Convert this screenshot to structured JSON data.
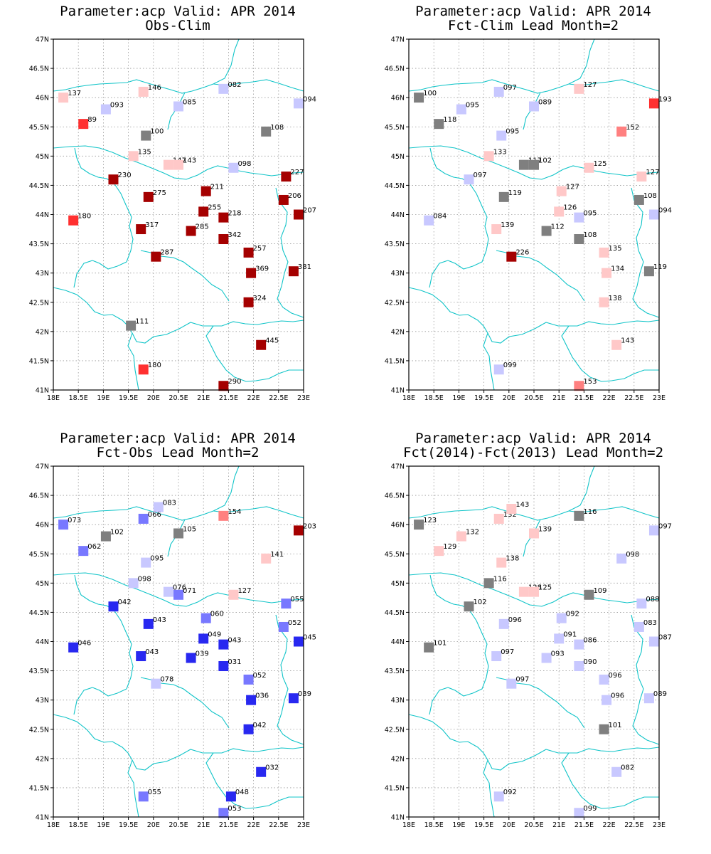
{
  "colors": {
    "gray": "#7f7f7f",
    "darkred": "#a50000",
    "red": "#ff3030",
    "lightred": "#ff8080",
    "pink": "#ffc8c8",
    "lightblue": "#c8c8ff",
    "midblue": "#7878ff",
    "blue": "#2828f0",
    "border": "#10c4c8"
  },
  "axes": {
    "lon_ticks": [
      "18E",
      "18.5E",
      "19E",
      "19.5E",
      "20E",
      "20.5E",
      "21E",
      "21.5E",
      "22E",
      "22.5E",
      "23E"
    ],
    "lat_ticks": [
      "41N",
      "41.5N",
      "42N",
      "42.5N",
      "43N",
      "43.5N",
      "44N",
      "44.5N",
      "45N",
      "45.5N",
      "46N",
      "46.5N",
      "47N"
    ],
    "lon_range": [
      18,
      23
    ],
    "lat_range": [
      41,
      47
    ]
  },
  "panels": [
    {
      "title_line1": "Parameter:acp Valid: APR 2014",
      "title_line2": "Obs-Clim",
      "stations": [
        {
          "lon": 18.2,
          "lat": 46.0,
          "value": "137",
          "color": "pink"
        },
        {
          "lon": 18.6,
          "lat": 45.55,
          "value": "89",
          "color": "red"
        },
        {
          "lon": 19.05,
          "lat": 45.8,
          "value": "093",
          "color": "lightblue"
        },
        {
          "lon": 19.8,
          "lat": 46.1,
          "value": "146",
          "color": "pink"
        },
        {
          "lon": 20.5,
          "lat": 45.85,
          "value": "085",
          "color": "lightblue"
        },
        {
          "lon": 21.4,
          "lat": 46.15,
          "value": "082",
          "color": "lightblue"
        },
        {
          "lon": 22.9,
          "lat": 45.9,
          "value": "094",
          "color": "lightblue"
        },
        {
          "lon": 19.85,
          "lat": 45.35,
          "value": "100",
          "color": "gray"
        },
        {
          "lon": 22.25,
          "lat": 45.42,
          "value": "108",
          "color": "gray"
        },
        {
          "lon": 19.6,
          "lat": 45.0,
          "value": "135",
          "color": "pink"
        },
        {
          "lon": 20.3,
          "lat": 44.85,
          "value": "147",
          "color": "pink"
        },
        {
          "lon": 20.5,
          "lat": 44.85,
          "value": "143",
          "color": "pink"
        },
        {
          "lon": 21.6,
          "lat": 44.8,
          "value": "098",
          "color": "lightblue"
        },
        {
          "lon": 19.2,
          "lat": 44.6,
          "value": "230",
          "color": "darkred"
        },
        {
          "lon": 22.65,
          "lat": 44.65,
          "value": "227",
          "color": "darkred"
        },
        {
          "lon": 19.9,
          "lat": 44.3,
          "value": "275",
          "color": "darkred"
        },
        {
          "lon": 21.05,
          "lat": 44.4,
          "value": "211",
          "color": "darkred"
        },
        {
          "lon": 22.6,
          "lat": 44.25,
          "value": "206",
          "color": "darkred"
        },
        {
          "lon": 18.4,
          "lat": 43.9,
          "value": "180",
          "color": "red"
        },
        {
          "lon": 21.0,
          "lat": 44.05,
          "value": "255",
          "color": "darkred"
        },
        {
          "lon": 21.4,
          "lat": 43.95,
          "value": "218",
          "color": "darkred"
        },
        {
          "lon": 22.9,
          "lat": 44.0,
          "value": "207",
          "color": "darkred"
        },
        {
          "lon": 19.75,
          "lat": 43.75,
          "value": "317",
          "color": "darkred"
        },
        {
          "lon": 20.75,
          "lat": 43.72,
          "value": "285",
          "color": "darkred"
        },
        {
          "lon": 21.4,
          "lat": 43.58,
          "value": "342",
          "color": "darkred"
        },
        {
          "lon": 20.05,
          "lat": 43.28,
          "value": "287",
          "color": "darkred"
        },
        {
          "lon": 21.9,
          "lat": 43.35,
          "value": "257",
          "color": "darkred"
        },
        {
          "lon": 21.95,
          "lat": 43.0,
          "value": "369",
          "color": "darkred"
        },
        {
          "lon": 22.8,
          "lat": 43.03,
          "value": "381",
          "color": "darkred"
        },
        {
          "lon": 21.9,
          "lat": 42.5,
          "value": "324",
          "color": "darkred"
        },
        {
          "lon": 19.55,
          "lat": 42.1,
          "value": "111",
          "color": "gray"
        },
        {
          "lon": 22.15,
          "lat": 41.77,
          "value": "445",
          "color": "darkred"
        },
        {
          "lon": 19.8,
          "lat": 41.35,
          "value": "180",
          "color": "red"
        },
        {
          "lon": 21.4,
          "lat": 41.07,
          "value": "290",
          "color": "darkred"
        }
      ]
    },
    {
      "title_line1": "Parameter:acp Valid: APR 2014",
      "title_line2": "Fct-Clim Lead Month=2",
      "stations": [
        {
          "lon": 18.2,
          "lat": 46.0,
          "value": "100",
          "color": "gray"
        },
        {
          "lon": 18.6,
          "lat": 45.55,
          "value": "118",
          "color": "gray"
        },
        {
          "lon": 19.05,
          "lat": 45.8,
          "value": "095",
          "color": "lightblue"
        },
        {
          "lon": 19.8,
          "lat": 46.1,
          "value": "097",
          "color": "lightblue"
        },
        {
          "lon": 20.5,
          "lat": 45.85,
          "value": "089",
          "color": "lightblue"
        },
        {
          "lon": 21.4,
          "lat": 46.15,
          "value": "127",
          "color": "pink"
        },
        {
          "lon": 22.9,
          "lat": 45.9,
          "value": "193",
          "color": "red"
        },
        {
          "lon": 19.85,
          "lat": 45.35,
          "value": "095",
          "color": "lightblue"
        },
        {
          "lon": 22.25,
          "lat": 45.42,
          "value": "152",
          "color": "lightred"
        },
        {
          "lon": 19.6,
          "lat": 45.0,
          "value": "133",
          "color": "pink"
        },
        {
          "lon": 20.3,
          "lat": 44.85,
          "value": "117",
          "color": "gray"
        },
        {
          "lon": 20.5,
          "lat": 44.85,
          "value": "102",
          "color": "gray"
        },
        {
          "lon": 21.6,
          "lat": 44.8,
          "value": "125",
          "color": "pink"
        },
        {
          "lon": 19.2,
          "lat": 44.6,
          "value": "097",
          "color": "lightblue"
        },
        {
          "lon": 22.65,
          "lat": 44.65,
          "value": "127",
          "color": "pink"
        },
        {
          "lon": 19.9,
          "lat": 44.3,
          "value": "119",
          "color": "gray"
        },
        {
          "lon": 21.05,
          "lat": 44.4,
          "value": "127",
          "color": "pink"
        },
        {
          "lon": 22.6,
          "lat": 44.25,
          "value": "108",
          "color": "gray"
        },
        {
          "lon": 18.4,
          "lat": 43.9,
          "value": "084",
          "color": "lightblue"
        },
        {
          "lon": 21.0,
          "lat": 44.05,
          "value": "126",
          "color": "pink"
        },
        {
          "lon": 21.4,
          "lat": 43.95,
          "value": "095",
          "color": "lightblue"
        },
        {
          "lon": 22.9,
          "lat": 44.0,
          "value": "094",
          "color": "lightblue"
        },
        {
          "lon": 19.75,
          "lat": 43.75,
          "value": "139",
          "color": "pink"
        },
        {
          "lon": 20.75,
          "lat": 43.72,
          "value": "112",
          "color": "gray"
        },
        {
          "lon": 21.4,
          "lat": 43.58,
          "value": "108",
          "color": "gray"
        },
        {
          "lon": 20.05,
          "lat": 43.28,
          "value": "226",
          "color": "darkred"
        },
        {
          "lon": 21.9,
          "lat": 43.35,
          "value": "135",
          "color": "pink"
        },
        {
          "lon": 21.95,
          "lat": 43.0,
          "value": "134",
          "color": "pink"
        },
        {
          "lon": 22.8,
          "lat": 43.03,
          "value": "119",
          "color": "gray"
        },
        {
          "lon": 21.9,
          "lat": 42.5,
          "value": "138",
          "color": "pink"
        },
        {
          "lon": 22.15,
          "lat": 41.77,
          "value": "143",
          "color": "pink"
        },
        {
          "lon": 19.8,
          "lat": 41.35,
          "value": "099",
          "color": "lightblue"
        },
        {
          "lon": 21.4,
          "lat": 41.07,
          "value": "153",
          "color": "lightred"
        }
      ]
    },
    {
      "title_line1": "Parameter:acp Valid: APR 2014",
      "title_line2": "Fct-Obs Lead Month=2",
      "stations": [
        {
          "lon": 18.2,
          "lat": 46.0,
          "value": "073",
          "color": "midblue"
        },
        {
          "lon": 18.6,
          "lat": 45.55,
          "value": "062",
          "color": "midblue"
        },
        {
          "lon": 19.05,
          "lat": 45.8,
          "value": "102",
          "color": "gray"
        },
        {
          "lon": 19.8,
          "lat": 46.1,
          "value": "066",
          "color": "midblue"
        },
        {
          "lon": 20.1,
          "lat": 46.3,
          "value": "083",
          "color": "lightblue"
        },
        {
          "lon": 20.5,
          "lat": 45.85,
          "value": "105",
          "color": "gray"
        },
        {
          "lon": 21.4,
          "lat": 46.15,
          "value": "154",
          "color": "lightred"
        },
        {
          "lon": 22.9,
          "lat": 45.9,
          "value": "203",
          "color": "darkred"
        },
        {
          "lon": 19.85,
          "lat": 45.35,
          "value": "095",
          "color": "lightblue"
        },
        {
          "lon": 22.25,
          "lat": 45.42,
          "value": "141",
          "color": "pink"
        },
        {
          "lon": 19.6,
          "lat": 45.0,
          "value": "098",
          "color": "lightblue"
        },
        {
          "lon": 20.3,
          "lat": 44.85,
          "value": "076",
          "color": "lightblue"
        },
        {
          "lon": 20.5,
          "lat": 44.8,
          "value": "071",
          "color": "midblue"
        },
        {
          "lon": 21.6,
          "lat": 44.8,
          "value": "127",
          "color": "pink"
        },
        {
          "lon": 19.2,
          "lat": 44.6,
          "value": "042",
          "color": "blue"
        },
        {
          "lon": 22.65,
          "lat": 44.65,
          "value": "055",
          "color": "midblue"
        },
        {
          "lon": 19.9,
          "lat": 44.3,
          "value": "043",
          "color": "blue"
        },
        {
          "lon": 21.05,
          "lat": 44.4,
          "value": "060",
          "color": "midblue"
        },
        {
          "lon": 22.6,
          "lat": 44.25,
          "value": "052",
          "color": "midblue"
        },
        {
          "lon": 18.4,
          "lat": 43.9,
          "value": "046",
          "color": "blue"
        },
        {
          "lon": 21.0,
          "lat": 44.05,
          "value": "049",
          "color": "blue"
        },
        {
          "lon": 21.4,
          "lat": 43.95,
          "value": "043",
          "color": "blue"
        },
        {
          "lon": 22.9,
          "lat": 44.0,
          "value": "045",
          "color": "blue"
        },
        {
          "lon": 19.75,
          "lat": 43.75,
          "value": "043",
          "color": "blue"
        },
        {
          "lon": 20.75,
          "lat": 43.72,
          "value": "039",
          "color": "blue"
        },
        {
          "lon": 21.4,
          "lat": 43.58,
          "value": "031",
          "color": "blue"
        },
        {
          "lon": 20.05,
          "lat": 43.28,
          "value": "078",
          "color": "lightblue"
        },
        {
          "lon": 21.9,
          "lat": 43.35,
          "value": "052",
          "color": "midblue"
        },
        {
          "lon": 21.95,
          "lat": 43.0,
          "value": "036",
          "color": "blue"
        },
        {
          "lon": 22.8,
          "lat": 43.03,
          "value": "039",
          "color": "blue"
        },
        {
          "lon": 21.9,
          "lat": 42.5,
          "value": "042",
          "color": "blue"
        },
        {
          "lon": 22.15,
          "lat": 41.77,
          "value": "032",
          "color": "blue"
        },
        {
          "lon": 19.8,
          "lat": 41.35,
          "value": "055",
          "color": "midblue"
        },
        {
          "lon": 21.55,
          "lat": 41.35,
          "value": "048",
          "color": "blue"
        },
        {
          "lon": 21.4,
          "lat": 41.07,
          "value": "053",
          "color": "midblue"
        }
      ]
    },
    {
      "title_line1": "Parameter:acp Valid: APR 2014",
      "title_line2": "Fct(2014)-Fct(2013) Lead Month=2",
      "stations": [
        {
          "lon": 18.2,
          "lat": 46.0,
          "value": "123",
          "color": "gray"
        },
        {
          "lon": 18.6,
          "lat": 45.55,
          "value": "129",
          "color": "pink"
        },
        {
          "lon": 19.05,
          "lat": 45.8,
          "value": "132",
          "color": "pink"
        },
        {
          "lon": 19.8,
          "lat": 46.1,
          "value": "132",
          "color": "pink"
        },
        {
          "lon": 20.05,
          "lat": 46.27,
          "value": "143",
          "color": "pink"
        },
        {
          "lon": 20.5,
          "lat": 45.85,
          "value": "139",
          "color": "pink"
        },
        {
          "lon": 21.4,
          "lat": 46.15,
          "value": "116",
          "color": "gray"
        },
        {
          "lon": 22.9,
          "lat": 45.9,
          "value": "097",
          "color": "lightblue"
        },
        {
          "lon": 19.85,
          "lat": 45.35,
          "value": "138",
          "color": "pink"
        },
        {
          "lon": 22.25,
          "lat": 45.42,
          "value": "098",
          "color": "lightblue"
        },
        {
          "lon": 19.6,
          "lat": 45.0,
          "value": "116",
          "color": "gray"
        },
        {
          "lon": 20.3,
          "lat": 44.85,
          "value": "128",
          "color": "pink"
        },
        {
          "lon": 20.5,
          "lat": 44.85,
          "value": "125",
          "color": "pink"
        },
        {
          "lon": 21.6,
          "lat": 44.8,
          "value": "109",
          "color": "gray"
        },
        {
          "lon": 19.2,
          "lat": 44.6,
          "value": "102",
          "color": "gray"
        },
        {
          "lon": 22.65,
          "lat": 44.65,
          "value": "088",
          "color": "lightblue"
        },
        {
          "lon": 19.9,
          "lat": 44.3,
          "value": "096",
          "color": "lightblue"
        },
        {
          "lon": 21.05,
          "lat": 44.4,
          "value": "092",
          "color": "lightblue"
        },
        {
          "lon": 22.6,
          "lat": 44.25,
          "value": "083",
          "color": "lightblue"
        },
        {
          "lon": 18.4,
          "lat": 43.9,
          "value": "101",
          "color": "gray"
        },
        {
          "lon": 21.0,
          "lat": 44.05,
          "value": "091",
          "color": "lightblue"
        },
        {
          "lon": 21.4,
          "lat": 43.95,
          "value": "086",
          "color": "lightblue"
        },
        {
          "lon": 22.9,
          "lat": 44.0,
          "value": "087",
          "color": "lightblue"
        },
        {
          "lon": 19.75,
          "lat": 43.75,
          "value": "097",
          "color": "lightblue"
        },
        {
          "lon": 20.75,
          "lat": 43.72,
          "value": "093",
          "color": "lightblue"
        },
        {
          "lon": 21.4,
          "lat": 43.58,
          "value": "090",
          "color": "lightblue"
        },
        {
          "lon": 20.05,
          "lat": 43.28,
          "value": "097",
          "color": "lightblue"
        },
        {
          "lon": 21.9,
          "lat": 43.35,
          "value": "096",
          "color": "lightblue"
        },
        {
          "lon": 21.95,
          "lat": 43.0,
          "value": "096",
          "color": "lightblue"
        },
        {
          "lon": 22.8,
          "lat": 43.03,
          "value": "089",
          "color": "lightblue"
        },
        {
          "lon": 21.9,
          "lat": 42.5,
          "value": "101",
          "color": "gray"
        },
        {
          "lon": 22.15,
          "lat": 41.77,
          "value": "082",
          "color": "lightblue"
        },
        {
          "lon": 19.8,
          "lat": 41.35,
          "value": "092",
          "color": "lightblue"
        },
        {
          "lon": 21.4,
          "lat": 41.07,
          "value": "099",
          "color": "lightblue"
        }
      ]
    }
  ]
}
